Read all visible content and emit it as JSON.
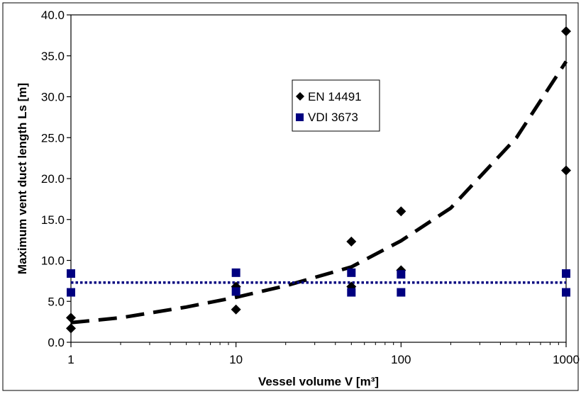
{
  "chart_data": {
    "type": "scatter",
    "xlabel": "Vessel volume V  [m³]",
    "ylabel": "Maximum vent duct length Ls  [m]",
    "x_scale": "log",
    "xlim": [
      1,
      1000
    ],
    "ylim": [
      0,
      40
    ],
    "x_ticks": [
      1,
      10,
      100,
      1000
    ],
    "x_tick_labels": [
      "1",
      "10",
      "100",
      "1000"
    ],
    "y_ticks": [
      0,
      5,
      10,
      15,
      20,
      25,
      30,
      35,
      40
    ],
    "y_tick_labels": [
      "0.0",
      "5.0",
      "10.0",
      "15.0",
      "20.0",
      "25.0",
      "30.0",
      "35.0",
      "40.0"
    ],
    "grid": false,
    "legend_position": "upper-center",
    "series": [
      {
        "name": "EN 14491",
        "marker": "diamond",
        "color": "#000000",
        "points": [
          [
            1,
            1.7
          ],
          [
            1,
            3.0
          ],
          [
            10,
            4.0
          ],
          [
            10,
            6.8
          ],
          [
            50,
            6.8
          ],
          [
            50,
            12.3
          ],
          [
            100,
            8.8
          ],
          [
            100,
            16.0
          ],
          [
            1000,
            21.0
          ],
          [
            1000,
            38.0
          ]
        ]
      },
      {
        "name": "VDI 3673",
        "marker": "square",
        "color": "#000080",
        "points": [
          [
            1,
            6.1
          ],
          [
            1,
            8.4
          ],
          [
            10,
            6.2
          ],
          [
            10,
            8.5
          ],
          [
            50,
            6.1
          ],
          [
            50,
            8.5
          ],
          [
            100,
            6.1
          ],
          [
            100,
            8.3
          ],
          [
            1000,
            6.1
          ],
          [
            1000,
            8.4
          ]
        ]
      }
    ],
    "trendlines": [
      {
        "series": "EN 14491",
        "style": "dashed",
        "color": "#000000",
        "points": [
          [
            1,
            2.4
          ],
          [
            2,
            3.0
          ],
          [
            5,
            4.3
          ],
          [
            10,
            5.5
          ],
          [
            20,
            6.9
          ],
          [
            50,
            9.2
          ],
          [
            100,
            12.4
          ],
          [
            200,
            16.4
          ],
          [
            500,
            25.0
          ],
          [
            1000,
            34.3
          ]
        ]
      },
      {
        "series": "VDI 3673",
        "style": "dotted",
        "color": "#000080",
        "points": [
          [
            1,
            7.3
          ],
          [
            1000,
            7.3
          ]
        ]
      }
    ]
  }
}
